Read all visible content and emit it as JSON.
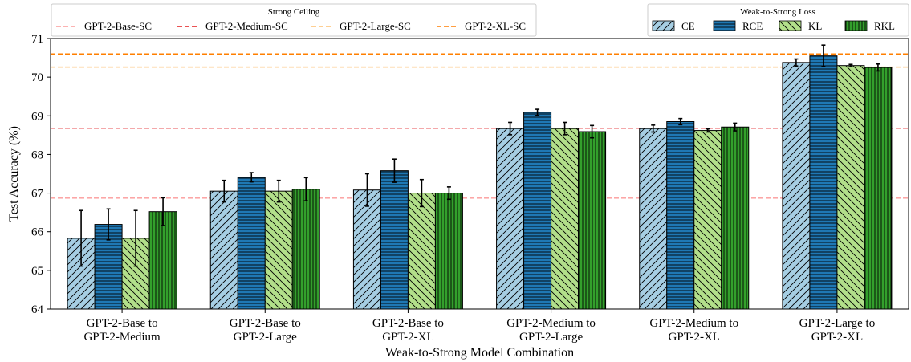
{
  "chart_data": {
    "type": "bar",
    "title": "",
    "xlabel": "Weak-to-Strong Model Combination",
    "ylabel": "Test Accuracy (%)",
    "ylim": [
      64,
      71
    ],
    "yticks": [
      64,
      65,
      66,
      67,
      68,
      69,
      70,
      71
    ],
    "grid": false,
    "categories": [
      [
        "GPT-2-Base to",
        "GPT-2-Medium"
      ],
      [
        "GPT-2-Base to",
        "GPT-2-Large"
      ],
      [
        "GPT-2-Base to",
        "GPT-2-XL"
      ],
      [
        "GPT-2-Medium to",
        "GPT-2-Large"
      ],
      [
        "GPT-2-Medium to",
        "GPT-2-XL"
      ],
      [
        "GPT-2-Large to",
        "GPT-2-XL"
      ]
    ],
    "series": [
      {
        "name": "CE",
        "color": "#a6cee3",
        "hatch": "diagonal",
        "values": [
          65.83,
          67.05,
          67.08,
          68.67,
          68.67,
          70.38
        ],
        "errors": [
          0.72,
          0.28,
          0.42,
          0.16,
          0.09,
          0.09
        ]
      },
      {
        "name": "RCE",
        "color": "#1f78b4",
        "hatch": "horizontal",
        "values": [
          66.19,
          67.41,
          67.58,
          69.09,
          68.85,
          70.55
        ],
        "errors": [
          0.4,
          0.12,
          0.3,
          0.08,
          0.08,
          0.28
        ]
      },
      {
        "name": "KL",
        "color": "#b2df8a",
        "hatch": "antidiagonal",
        "values": [
          65.83,
          67.05,
          67.0,
          68.67,
          68.62,
          70.3
        ],
        "errors": [
          0.72,
          0.28,
          0.35,
          0.16,
          0.04,
          0.03
        ]
      },
      {
        "name": "RKL",
        "color": "#33a02c",
        "hatch": "vertical",
        "values": [
          66.52,
          67.1,
          67.0,
          68.59,
          68.71,
          70.25
        ],
        "errors": [
          0.36,
          0.3,
          0.16,
          0.16,
          0.1,
          0.09
        ]
      }
    ],
    "ceilings": [
      {
        "name": "GPT-2-Base-SC",
        "color": "#fb9a99",
        "value": 66.87
      },
      {
        "name": "GPT-2-Medium-SC",
        "color": "#e31a1c",
        "value": 68.68
      },
      {
        "name": "GPT-2-Large-SC",
        "color": "#fdbf6f",
        "value": 70.26
      },
      {
        "name": "GPT-2-XL-SC",
        "color": "#ff7f00",
        "value": 70.6
      }
    ],
    "legends": {
      "ceiling_title": "Strong Ceiling",
      "ceiling_placement": "top-left",
      "loss_title": "Weak-to-Strong Loss",
      "loss_placement": "top-right"
    }
  }
}
